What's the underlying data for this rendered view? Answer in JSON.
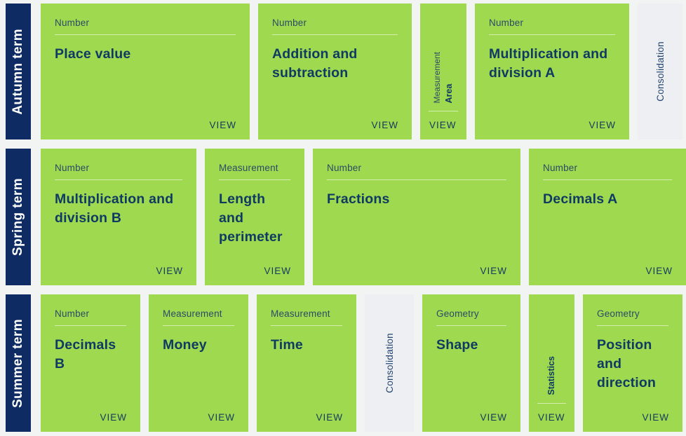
{
  "view_label": "VIEW",
  "colors": {
    "card_green": "#9fd950",
    "term_navy": "#0e2b63",
    "title_navy": "#0f3a62",
    "category_navy": "#2c4a66",
    "consolidation_bg": "#edeff2",
    "page_bg": "#f2f3f3"
  },
  "rows": [
    {
      "term": "Autumn term",
      "cards": [
        {
          "kind": "topic",
          "category": "Number",
          "title": "Place value"
        },
        {
          "kind": "topic",
          "category": "Number",
          "title": "Addition and subtraction"
        },
        {
          "kind": "topic-vertical",
          "category": "Measurement",
          "title": "Area"
        },
        {
          "kind": "topic",
          "category": "Number",
          "title": "Multiplication and division A"
        },
        {
          "kind": "consolidation",
          "title": "Consolidation"
        }
      ]
    },
    {
      "term": "Spring term",
      "cards": [
        {
          "kind": "topic",
          "category": "Number",
          "title": "Multiplication and division B"
        },
        {
          "kind": "topic",
          "category": "Measurement",
          "title": "Length and perimeter"
        },
        {
          "kind": "topic",
          "category": "Number",
          "title": "Fractions"
        },
        {
          "kind": "topic",
          "category": "Number",
          "title": "Decimals A"
        }
      ]
    },
    {
      "term": "Summer term",
      "cards": [
        {
          "kind": "topic",
          "category": "Number",
          "title": "Decimals B"
        },
        {
          "kind": "topic",
          "category": "Measurement",
          "title": "Money"
        },
        {
          "kind": "topic",
          "category": "Measurement",
          "title": "Time"
        },
        {
          "kind": "consolidation",
          "title": "Consolidation"
        },
        {
          "kind": "topic",
          "category": "Geometry",
          "title": "Shape"
        },
        {
          "kind": "topic-vertical",
          "title": "Statistics"
        },
        {
          "kind": "topic",
          "category": "Geometry",
          "title": "Position and direction"
        }
      ]
    }
  ]
}
